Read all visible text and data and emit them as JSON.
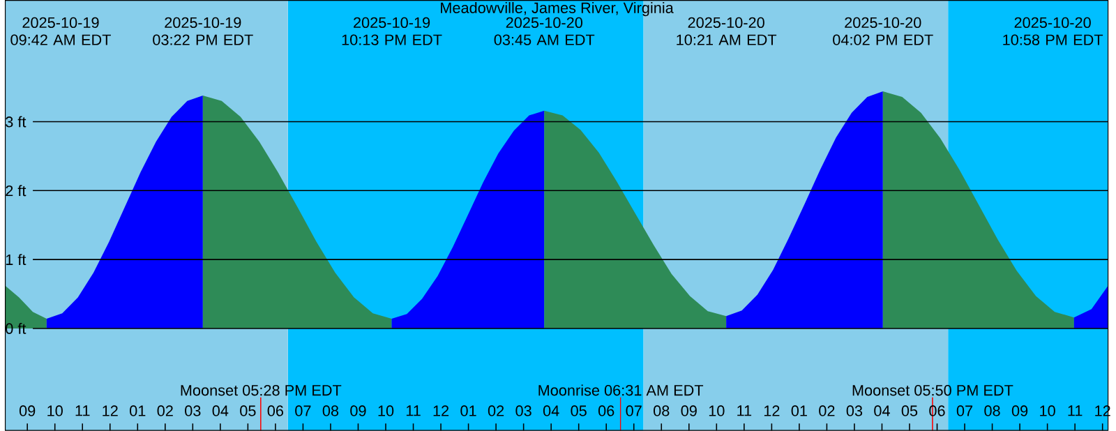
{
  "chart_data": {
    "type": "area",
    "title": "Meadowville, James River, Virginia",
    "xlim": [
      "2025-10-19T08:12",
      "2025-10-21T00:12"
    ],
    "ylim": [
      -1.48,
      4.76
    ],
    "xticks": [
      {
        "value": "2025-10-19T09:00",
        "label": "09"
      },
      {
        "value": "2025-10-19T10:00",
        "label": "10"
      },
      {
        "value": "2025-10-19T11:00",
        "label": "11"
      },
      {
        "value": "2025-10-19T12:00",
        "label": "12"
      },
      {
        "value": "2025-10-19T13:00",
        "label": "01"
      },
      {
        "value": "2025-10-19T14:00",
        "label": "02"
      },
      {
        "value": "2025-10-19T15:00",
        "label": "03"
      },
      {
        "value": "2025-10-19T16:00",
        "label": "04"
      },
      {
        "value": "2025-10-19T17:00",
        "label": "05"
      },
      {
        "value": "2025-10-19T18:00",
        "label": "06"
      },
      {
        "value": "2025-10-19T19:00",
        "label": "07"
      },
      {
        "value": "2025-10-19T20:00",
        "label": "08"
      },
      {
        "value": "2025-10-19T21:00",
        "label": "09"
      },
      {
        "value": "2025-10-19T22:00",
        "label": "10"
      },
      {
        "value": "2025-10-19T23:00",
        "label": "11"
      },
      {
        "value": "2025-10-20T00:00",
        "label": "12"
      },
      {
        "value": "2025-10-20T01:00",
        "label": "01"
      },
      {
        "value": "2025-10-20T02:00",
        "label": "02"
      },
      {
        "value": "2025-10-20T03:00",
        "label": "03"
      },
      {
        "value": "2025-10-20T04:00",
        "label": "04"
      },
      {
        "value": "2025-10-20T05:00",
        "label": "05"
      },
      {
        "value": "2025-10-20T06:00",
        "label": "06"
      },
      {
        "value": "2025-10-20T07:00",
        "label": "07"
      },
      {
        "value": "2025-10-20T08:00",
        "label": "08"
      },
      {
        "value": "2025-10-20T09:00",
        "label": "09"
      },
      {
        "value": "2025-10-20T10:00",
        "label": "10"
      },
      {
        "value": "2025-10-20T11:00",
        "label": "11"
      },
      {
        "value": "2025-10-20T12:00",
        "label": "12"
      },
      {
        "value": "2025-10-20T13:00",
        "label": "01"
      },
      {
        "value": "2025-10-20T14:00",
        "label": "02"
      },
      {
        "value": "2025-10-20T15:00",
        "label": "03"
      },
      {
        "value": "2025-10-20T16:00",
        "label": "04"
      },
      {
        "value": "2025-10-20T17:00",
        "label": "05"
      },
      {
        "value": "2025-10-20T18:00",
        "label": "06"
      },
      {
        "value": "2025-10-20T19:00",
        "label": "07"
      },
      {
        "value": "2025-10-20T20:00",
        "label": "08"
      },
      {
        "value": "2025-10-20T21:00",
        "label": "09"
      },
      {
        "value": "2025-10-20T22:00",
        "label": "10"
      },
      {
        "value": "2025-10-20T23:00",
        "label": "11"
      },
      {
        "value": "2025-10-21T00:00",
        "label": "12"
      }
    ],
    "yticks": [
      {
        "value": 0,
        "label": "0 ft"
      },
      {
        "value": 1,
        "label": "1 ft"
      },
      {
        "value": 2,
        "label": "2 ft"
      },
      {
        "value": 3,
        "label": "3 ft"
      }
    ],
    "grid": "y",
    "series": [
      {
        "color": "#2e8b57",
        "x": [
          "2025-10-19T08:12",
          "2025-10-19T08:42",
          "2025-10-19T09:12",
          "2025-10-19T09:42"
        ],
        "values": [
          0.62,
          0.45,
          0.24,
          0.14
        ]
      },
      {
        "color": "#0000ff",
        "x": [
          "2025-10-19T09:42",
          "2025-10-19T10:16",
          "2025-10-19T10:50",
          "2025-10-19T11:24",
          "2025-10-19T11:58",
          "2025-10-19T12:32",
          "2025-10-19T13:06",
          "2025-10-19T13:40",
          "2025-10-19T14:14",
          "2025-10-19T14:48",
          "2025-10-19T15:22"
        ],
        "values": [
          0.14,
          0.22,
          0.45,
          0.81,
          1.26,
          1.76,
          2.26,
          2.71,
          3.07,
          3.3,
          3.38
        ]
      },
      {
        "color": "#2e8b57",
        "x": [
          "2025-10-19T15:22",
          "2025-10-19T16:03",
          "2025-10-19T16:44",
          "2025-10-19T17:25",
          "2025-10-19T18:06",
          "2025-10-19T18:48",
          "2025-10-19T19:29",
          "2025-10-19T20:10",
          "2025-10-19T20:51",
          "2025-10-19T21:32",
          "2025-10-19T22:13"
        ],
        "values": [
          3.38,
          3.3,
          3.07,
          2.71,
          2.26,
          1.76,
          1.26,
          0.81,
          0.45,
          0.22,
          0.14
        ]
      },
      {
        "color": "#0000ff",
        "x": [
          "2025-10-19T22:13",
          "2025-10-19T22:46",
          "2025-10-19T23:19",
          "2025-10-19T23:53",
          "2025-10-20T00:26",
          "2025-10-20T00:59",
          "2025-10-20T01:32",
          "2025-10-20T02:05",
          "2025-10-20T02:39",
          "2025-10-20T03:12",
          "2025-10-20T03:45"
        ],
        "values": [
          0.14,
          0.21,
          0.43,
          0.76,
          1.18,
          1.65,
          2.12,
          2.54,
          2.87,
          3.09,
          3.16
        ]
      },
      {
        "color": "#2e8b57",
        "x": [
          "2025-10-20T03:45",
          "2025-10-20T04:25",
          "2025-10-20T05:04",
          "2025-10-20T05:44",
          "2025-10-20T06:23",
          "2025-10-20T07:03",
          "2025-10-20T07:43",
          "2025-10-20T08:22",
          "2025-10-20T09:02",
          "2025-10-20T09:41",
          "2025-10-20T10:21"
        ],
        "values": [
          3.16,
          3.09,
          2.88,
          2.55,
          2.13,
          1.67,
          1.21,
          0.79,
          0.47,
          0.25,
          0.18
        ]
      },
      {
        "color": "#0000ff",
        "x": [
          "2025-10-20T10:21",
          "2025-10-20T10:55",
          "2025-10-20T11:29",
          "2025-10-20T12:03",
          "2025-10-20T12:37",
          "2025-10-20T13:12",
          "2025-10-20T13:46",
          "2025-10-20T14:20",
          "2025-10-20T14:54",
          "2025-10-20T15:28",
          "2025-10-20T16:02"
        ],
        "values": [
          0.18,
          0.26,
          0.49,
          0.85,
          1.31,
          1.81,
          2.31,
          2.77,
          3.13,
          3.36,
          3.44
        ]
      },
      {
        "color": "#2e8b57",
        "x": [
          "2025-10-20T16:02",
          "2025-10-20T16:44",
          "2025-10-20T17:25",
          "2025-10-20T18:07",
          "2025-10-20T18:48",
          "2025-10-20T19:30",
          "2025-10-20T20:12",
          "2025-10-20T20:53",
          "2025-10-20T21:35",
          "2025-10-20T22:16",
          "2025-10-20T22:58"
        ],
        "values": [
          3.44,
          3.36,
          3.13,
          2.76,
          2.31,
          1.8,
          1.29,
          0.84,
          0.47,
          0.24,
          0.16
        ]
      },
      {
        "color": "#0000ff",
        "x": [
          "2025-10-20T22:58",
          "2025-10-20T23:36",
          "2025-10-21T00:12"
        ],
        "values": [
          0.16,
          0.28,
          0.62
        ]
      }
    ],
    "bands": [
      {
        "axis": "x",
        "from": "2025-10-19T08:12",
        "to": "2025-10-19T18:27",
        "color": "#87ceeb"
      },
      {
        "axis": "x",
        "from": "2025-10-19T18:27",
        "to": "2025-10-20T07:21",
        "color": "#00bfff"
      },
      {
        "axis": "x",
        "from": "2025-10-20T07:21",
        "to": "2025-10-20T18:24",
        "color": "#87ceeb"
      },
      {
        "axis": "x",
        "from": "2025-10-20T18:24",
        "to": "2025-10-21T00:12",
        "color": "#00bfff"
      }
    ],
    "ref_lines": [
      {
        "axis": "x",
        "value": "2025-10-19T17:28",
        "label": "Moonset 05:28 PM EDT",
        "color": "#ff0000"
      },
      {
        "axis": "x",
        "value": "2025-10-20T06:31",
        "label": "Moonrise 06:31 AM EDT",
        "color": "#ff0000"
      },
      {
        "axis": "x",
        "value": "2025-10-20T17:50",
        "label": "Moonset 05:50 PM EDT",
        "color": "#ff0000"
      }
    ],
    "annotations": [
      "2025-10-19 09:42 AM EDT",
      "2025-10-19 03:22 PM EDT",
      "2025-10-19 10:13 PM EDT",
      "2025-10-20 03:45 AM EDT",
      "2025-10-20 10:21 AM EDT",
      "2025-10-20 04:02 PM EDT",
      "2025-10-20 10:58 PM EDT"
    ]
  }
}
